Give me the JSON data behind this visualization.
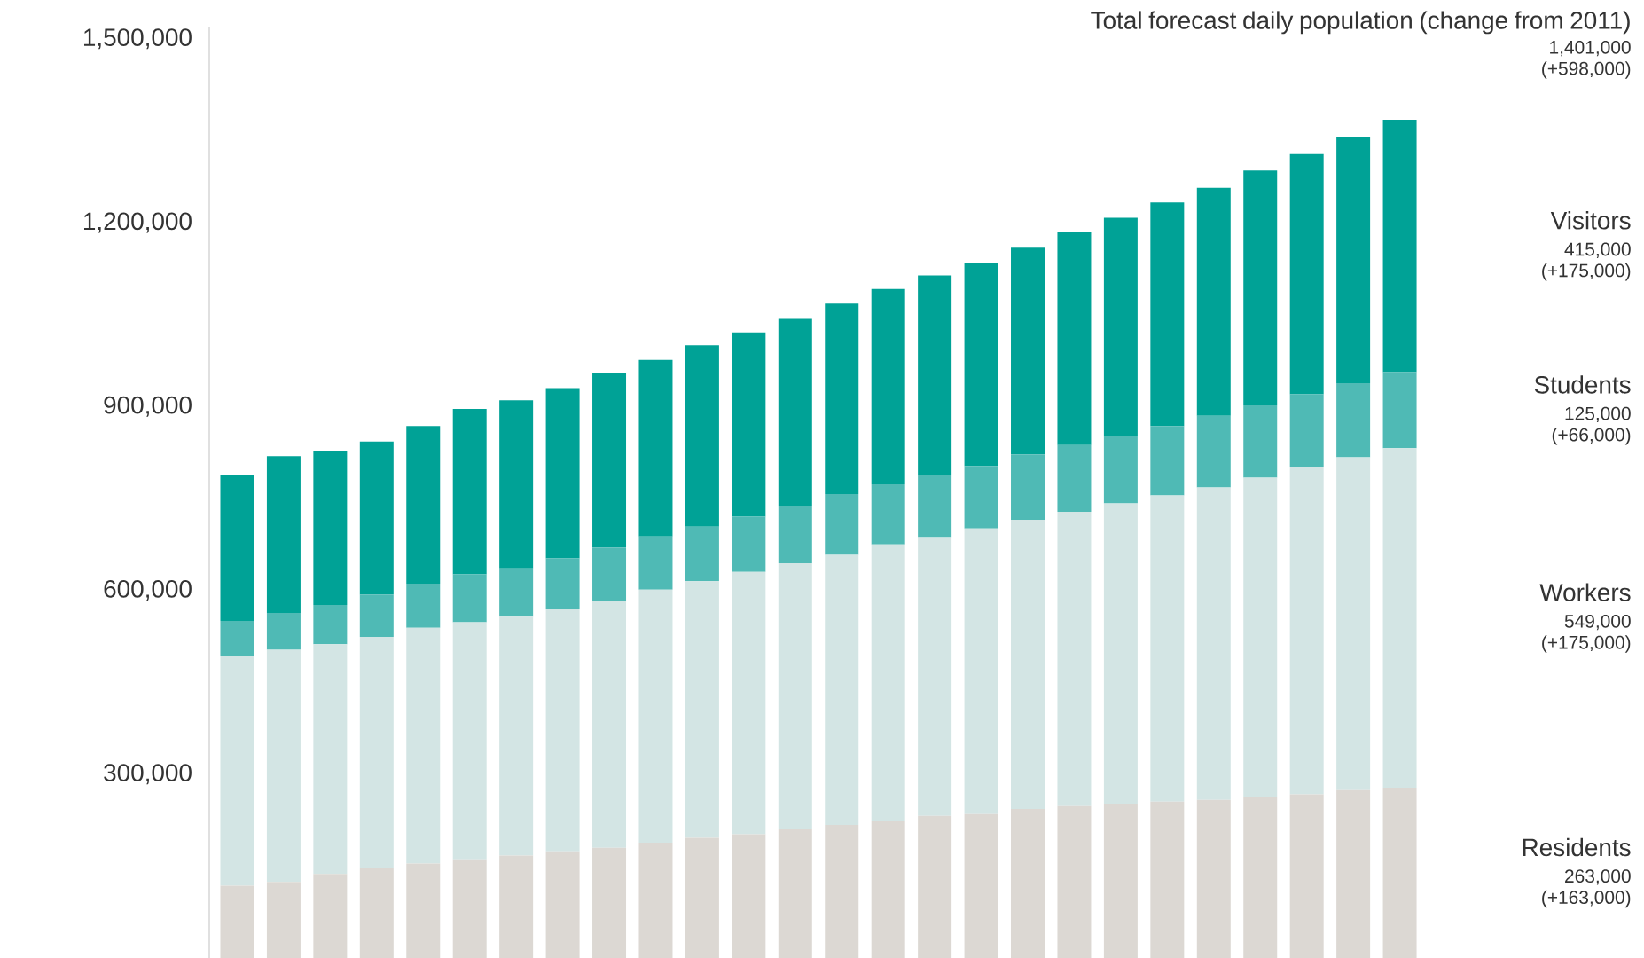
{
  "chart_data": {
    "type": "bar",
    "stacked": true,
    "title": "Total forecast daily population (change from 2011)",
    "categories": [
      null,
      null,
      null,
      null,
      null,
      null,
      null,
      null,
      null,
      null,
      null,
      null,
      null,
      null,
      null,
      null,
      null,
      null,
      null,
      null,
      null,
      null,
      null,
      null,
      null,
      null
    ],
    "series": [
      {
        "name": "Residents",
        "color": "#dcd8d3",
        "values": [
          118000,
          124000,
          137000,
          147000,
          154000,
          161000,
          167000,
          174000,
          180000,
          188000,
          196000,
          202000,
          210000,
          217000,
          224000,
          232000,
          235000,
          243000,
          248000,
          252000,
          255000,
          258000,
          262000,
          267000,
          274000,
          278000
        ]
      },
      {
        "name": "Workers",
        "color": "#d3e5e4",
        "values": [
          375000,
          379000,
          375000,
          377000,
          385000,
          387000,
          390000,
          396000,
          403000,
          413000,
          419000,
          428000,
          434000,
          441000,
          451000,
          455000,
          466000,
          472000,
          480000,
          490000,
          500000,
          510000,
          522000,
          535000,
          543000,
          554000
        ]
      },
      {
        "name": "Students",
        "color": "#4fbab5",
        "values": [
          57000,
          60000,
          64000,
          69000,
          72000,
          78000,
          79000,
          82000,
          87000,
          87000,
          89000,
          90000,
          94000,
          99000,
          98000,
          101000,
          102000,
          107000,
          109000,
          110000,
          113000,
          117000,
          118000,
          118000,
          121000,
          124000
        ]
      },
      {
        "name": "Visitors",
        "color": "#00a296",
        "values": [
          238000,
          256000,
          252000,
          250000,
          257000,
          270000,
          274000,
          278000,
          284000,
          288000,
          296000,
          301000,
          305000,
          311000,
          319000,
          326000,
          332000,
          337000,
          348000,
          356000,
          365000,
          372000,
          383000,
          392000,
          402000,
          412000
        ]
      }
    ],
    "ylim": [
      0,
      1520000
    ],
    "yticks": [
      {
        "value": 300000,
        "label": "300,000"
      },
      {
        "value": 600000,
        "label": "600,000"
      },
      {
        "value": 900000,
        "label": "900,000"
      },
      {
        "value": 1200000,
        "label": "1,200,000"
      },
      {
        "value": 1500000,
        "label": "1,500,000"
      }
    ],
    "tick_labels": "y",
    "annotations": [
      "1,401,000",
      "(+598,000)",
      "263,000",
      "(+163,000)",
      "549,000",
      "(+175,000)",
      "125,000",
      "(+66,000)",
      "415,000",
      "(+175,000)"
    ]
  }
}
